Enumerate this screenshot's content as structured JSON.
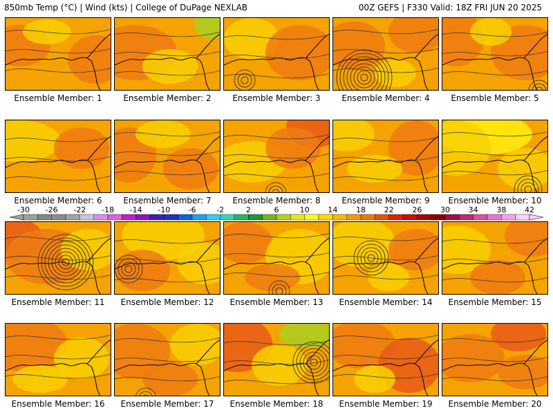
{
  "header": {
    "left": "850mb Temp (°C) | Wind (kts) | College of DuPage NEXLAB",
    "right": "00Z GEFS | F330 Valid: 18Z FRI JUN 20 2025"
  },
  "members": [
    {
      "label": "Ensemble Member: 1"
    },
    {
      "label": "Ensemble Member: 2"
    },
    {
      "label": "Ensemble Member: 3"
    },
    {
      "label": "Ensemble Member: 4"
    },
    {
      "label": "Ensemble Member: 5"
    },
    {
      "label": "Ensemble Member: 6"
    },
    {
      "label": "Ensemble Member: 7"
    },
    {
      "label": "Ensemble Member: 8"
    },
    {
      "label": "Ensemble Member: 9"
    },
    {
      "label": "Ensemble Member: 10"
    },
    {
      "label": "Ensemble Member: 11"
    },
    {
      "label": "Ensemble Member: 12"
    },
    {
      "label": "Ensemble Member: 13"
    },
    {
      "label": "Ensemble Member: 14"
    },
    {
      "label": "Ensemble Member: 15"
    },
    {
      "label": "Ensemble Member: 16"
    },
    {
      "label": "Ensemble Member: 17"
    },
    {
      "label": "Ensemble Member: 18"
    },
    {
      "label": "Ensemble Member: 19"
    },
    {
      "label": "Ensemble Member: 20"
    }
  ],
  "colorbar": {
    "ticks": [
      "-30",
      "-26",
      "-22",
      "-18",
      "-14",
      "-10",
      "-6",
      "-2",
      "2",
      "6",
      "10",
      "14",
      "18",
      "22",
      "26",
      "30",
      "34",
      "38",
      "42"
    ],
    "colors": [
      "#9aa59a",
      "#7f8a80",
      "#8c8c8c",
      "#a0a0a0",
      "#c8c8d8",
      "#d890e8",
      "#e060e0",
      "#c020c8",
      "#8818c0",
      "#4020b0",
      "#2030c8",
      "#1060e0",
      "#20a0f0",
      "#30d0f0",
      "#30d8b0",
      "#20b860",
      "#209830",
      "#70b818",
      "#b8d018",
      "#e8e818",
      "#ffff20",
      "#ffd800",
      "#ffb800",
      "#f89800",
      "#f07800",
      "#e85000",
      "#e02000",
      "#c81000",
      "#a80808",
      "#880000",
      "#a01040",
      "#c02870",
      "#e050a0",
      "#f070d0",
      "#f8a0f0",
      "#ffd0ff"
    ]
  },
  "panel_fill": {
    "base": "#f5a300",
    "warm": "#ee7b12",
    "hot": "#e85a18",
    "cool": "#f8d000",
    "yellow": "#ffee10",
    "green": "#a8d020"
  }
}
